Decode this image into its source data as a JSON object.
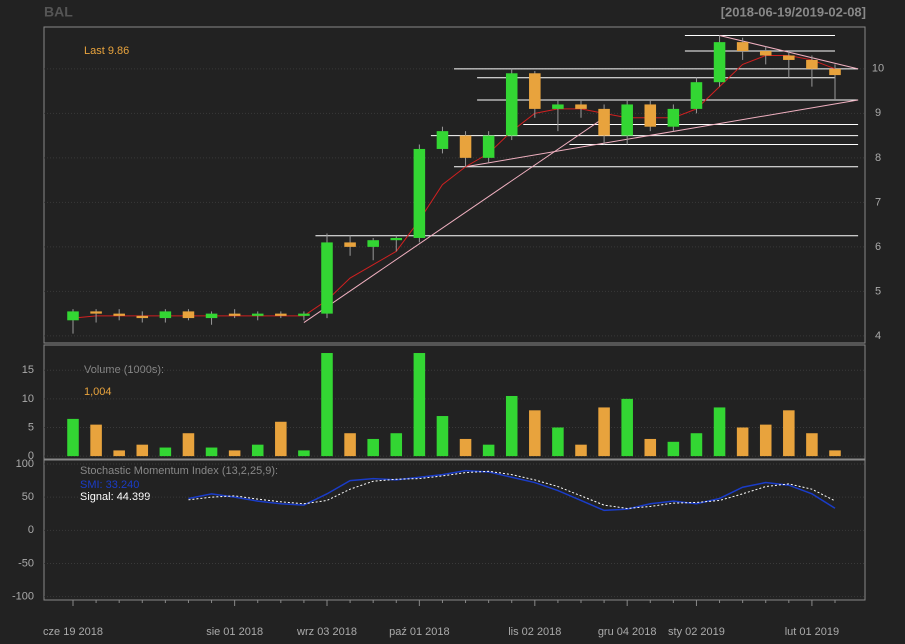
{
  "chart_data": {
    "type": "candlestick",
    "title": "BAL",
    "subtitle": "[2018-06-19/2019-02-08]",
    "last_label": "Last 9.86",
    "categories": [
      "cze 19 2018",
      null,
      null,
      null,
      null,
      null,
      null,
      "sie 01 2018",
      null,
      null,
      null,
      "wrz 03 2018",
      null,
      null,
      null,
      "paź 01 2018",
      null,
      null,
      null,
      null,
      "lis 02 2018",
      null,
      null,
      null,
      "gru 04 2018",
      null,
      null,
      "sty 02 2019",
      null,
      null,
      null,
      null,
      "lut 01 2019",
      null
    ],
    "open": [
      4.35,
      4.55,
      4.5,
      4.45,
      4.4,
      4.55,
      4.4,
      4.5,
      4.45,
      4.5,
      4.45,
      4.5,
      6.1,
      6.0,
      6.15,
      6.2,
      8.2,
      8.5,
      8.0,
      8.5,
      9.9,
      9.1,
      9.2,
      9.1,
      8.5,
      9.2,
      8.7,
      9.1,
      9.7,
      10.6,
      10.4,
      10.3,
      10.2,
      10.0
    ],
    "high": [
      4.6,
      4.6,
      4.6,
      4.55,
      4.6,
      4.6,
      4.55,
      4.6,
      4.55,
      4.55,
      4.55,
      6.3,
      6.25,
      6.2,
      6.25,
      8.3,
      8.7,
      8.6,
      8.6,
      10.0,
      9.95,
      9.3,
      9.3,
      9.2,
      9.3,
      9.3,
      9.2,
      9.8,
      10.75,
      10.7,
      10.5,
      10.4,
      10.3,
      10.1
    ],
    "low": [
      4.05,
      4.3,
      4.35,
      4.3,
      4.3,
      4.35,
      4.25,
      4.4,
      4.35,
      4.4,
      4.35,
      4.4,
      5.8,
      5.7,
      5.9,
      6.1,
      8.1,
      7.8,
      7.9,
      8.4,
      8.9,
      8.6,
      8.9,
      8.3,
      8.3,
      8.6,
      8.6,
      9.0,
      9.6,
      10.2,
      10.1,
      9.8,
      9.6,
      9.3
    ],
    "close": [
      4.55,
      4.5,
      4.45,
      4.4,
      4.55,
      4.4,
      4.5,
      4.45,
      4.5,
      4.45,
      4.5,
      6.1,
      6.0,
      6.15,
      6.2,
      8.2,
      8.6,
      8.0,
      8.5,
      9.9,
      9.1,
      9.2,
      9.1,
      8.5,
      9.2,
      8.7,
      9.1,
      9.7,
      10.6,
      10.4,
      10.3,
      10.2,
      10.0,
      9.86
    ],
    "ma": [
      4.4,
      4.45,
      4.45,
      4.45,
      4.45,
      4.45,
      4.45,
      4.45,
      4.45,
      4.45,
      4.45,
      4.8,
      5.3,
      5.6,
      5.9,
      6.6,
      7.4,
      7.8,
      8.1,
      8.6,
      9.0,
      9.1,
      9.1,
      9.0,
      8.9,
      8.9,
      8.9,
      9.1,
      9.6,
      10.1,
      10.3,
      10.3,
      10.2,
      10.0
    ],
    "up_color": "#33d633",
    "down_color": "#e8a33d",
    "ma_color": "#d02020",
    "ylim": [
      3.84,
      10.94
    ],
    "yticks": [
      4,
      5,
      6,
      7,
      8,
      9,
      10
    ],
    "levels": [
      {
        "value": 10.75,
        "from": 27,
        "to": 33
      },
      {
        "value": 10.4,
        "from": 27,
        "to": 33
      },
      {
        "value": 10.0,
        "from": 17,
        "to": 34
      },
      {
        "value": 9.8,
        "from": 18,
        "to": 33
      },
      {
        "value": 9.3,
        "from": 18,
        "to": 34
      },
      {
        "value": 8.75,
        "from": 20,
        "to": 34
      },
      {
        "value": 8.5,
        "from": 16,
        "to": 34
      },
      {
        "value": 8.3,
        "from": 22,
        "to": 34
      },
      {
        "value": 7.8,
        "from": 17,
        "to": 34
      },
      {
        "value": 6.25,
        "from": 11,
        "to": 34
      }
    ],
    "trendlines": [
      [
        [
          10,
          4.3
        ],
        [
          23,
          8.9
        ]
      ],
      [
        [
          17,
          7.8
        ],
        [
          34,
          9.3
        ]
      ],
      [
        [
          28,
          10.75
        ],
        [
          34,
          10.0
        ]
      ]
    ],
    "volume": {
      "label": "Volume (1000s):",
      "last": "1,004",
      "values": [
        6.5,
        5.5,
        1,
        2,
        1.5,
        4,
        1.5,
        1,
        2,
        6,
        1,
        18,
        4,
        3,
        4,
        18,
        7,
        3,
        2,
        10.5,
        8,
        5,
        2,
        8.5,
        10,
        3,
        2.5,
        4,
        8.5,
        5,
        5.5,
        8,
        4,
        1.004
      ],
      "ylim": [
        -0.5,
        19.4
      ],
      "yticks": [
        0,
        5,
        10,
        15
      ]
    },
    "smi": {
      "label": "Stochastic Momentum Index (13,2,25,9):",
      "smi_label": "SMI: 33.240",
      "signal_label": "Signal: 44.399",
      "smi_color": "#1a3cc8",
      "signal_color": "#ffffff",
      "smi": [
        null,
        null,
        null,
        null,
        null,
        48,
        55,
        50,
        44,
        40,
        38,
        55,
        75,
        78,
        76,
        80,
        84,
        90,
        88,
        80,
        72,
        60,
        45,
        30,
        32,
        40,
        44,
        40,
        48,
        65,
        72,
        68,
        55,
        33.24
      ],
      "signal": [
        null,
        null,
        null,
        null,
        null,
        46,
        50,
        52,
        47,
        43,
        40,
        45,
        62,
        74,
        77,
        78,
        82,
        87,
        89,
        84,
        76,
        66,
        52,
        38,
        33,
        36,
        41,
        42,
        45,
        55,
        66,
        70,
        62,
        44.399
      ],
      "ylim": [
        -105,
        106
      ],
      "yticks": [
        -100,
        -50,
        0,
        50,
        100
      ]
    }
  }
}
